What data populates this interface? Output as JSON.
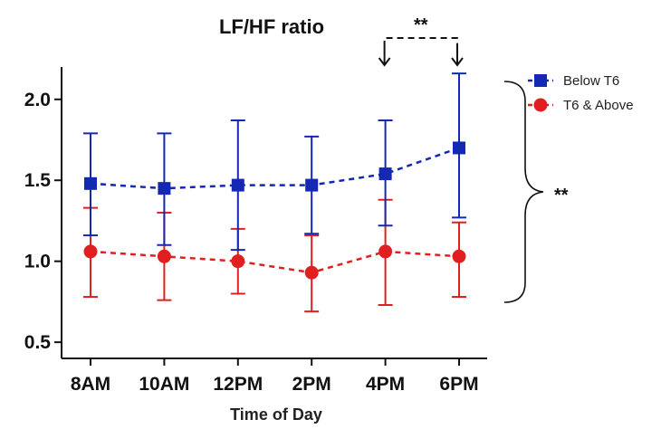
{
  "chart_data": {
    "type": "line",
    "title": "LF/HF ratio",
    "xlabel": "Time of Day",
    "ylabel": "",
    "categories": [
      "8AM",
      "10AM",
      "12PM",
      "2PM",
      "4PM",
      "6PM"
    ],
    "ylim": [
      0.4,
      2.2
    ],
    "yticks": [
      "0.5",
      "1.0",
      "1.5",
      "2.0"
    ],
    "grid": false,
    "legend_position": "top-right",
    "series": [
      {
        "name": "Below T6",
        "color": "#1428b4",
        "marker": "square",
        "values": [
          1.48,
          1.45,
          1.47,
          1.47,
          1.54,
          1.7
        ],
        "err_upper": [
          1.79,
          1.79,
          1.87,
          1.77,
          1.87,
          2.16
        ],
        "err_lower": [
          1.16,
          1.1,
          1.07,
          1.17,
          1.22,
          1.27
        ]
      },
      {
        "name": "T6 & Above",
        "color": "#e02020",
        "marker": "circle",
        "values": [
          1.06,
          1.03,
          1.0,
          0.93,
          1.06,
          1.03
        ],
        "err_upper": [
          1.33,
          1.3,
          1.2,
          1.16,
          1.38,
          1.24
        ],
        "err_lower": [
          0.78,
          0.76,
          0.8,
          0.69,
          0.73,
          0.78
        ]
      }
    ],
    "annotations": [
      {
        "text": "**",
        "type": "bracket",
        "from": "4PM",
        "to": "6PM"
      },
      {
        "text": "**",
        "type": "brace",
        "between": [
          "Below T6",
          "T6 & Above"
        ]
      }
    ]
  }
}
